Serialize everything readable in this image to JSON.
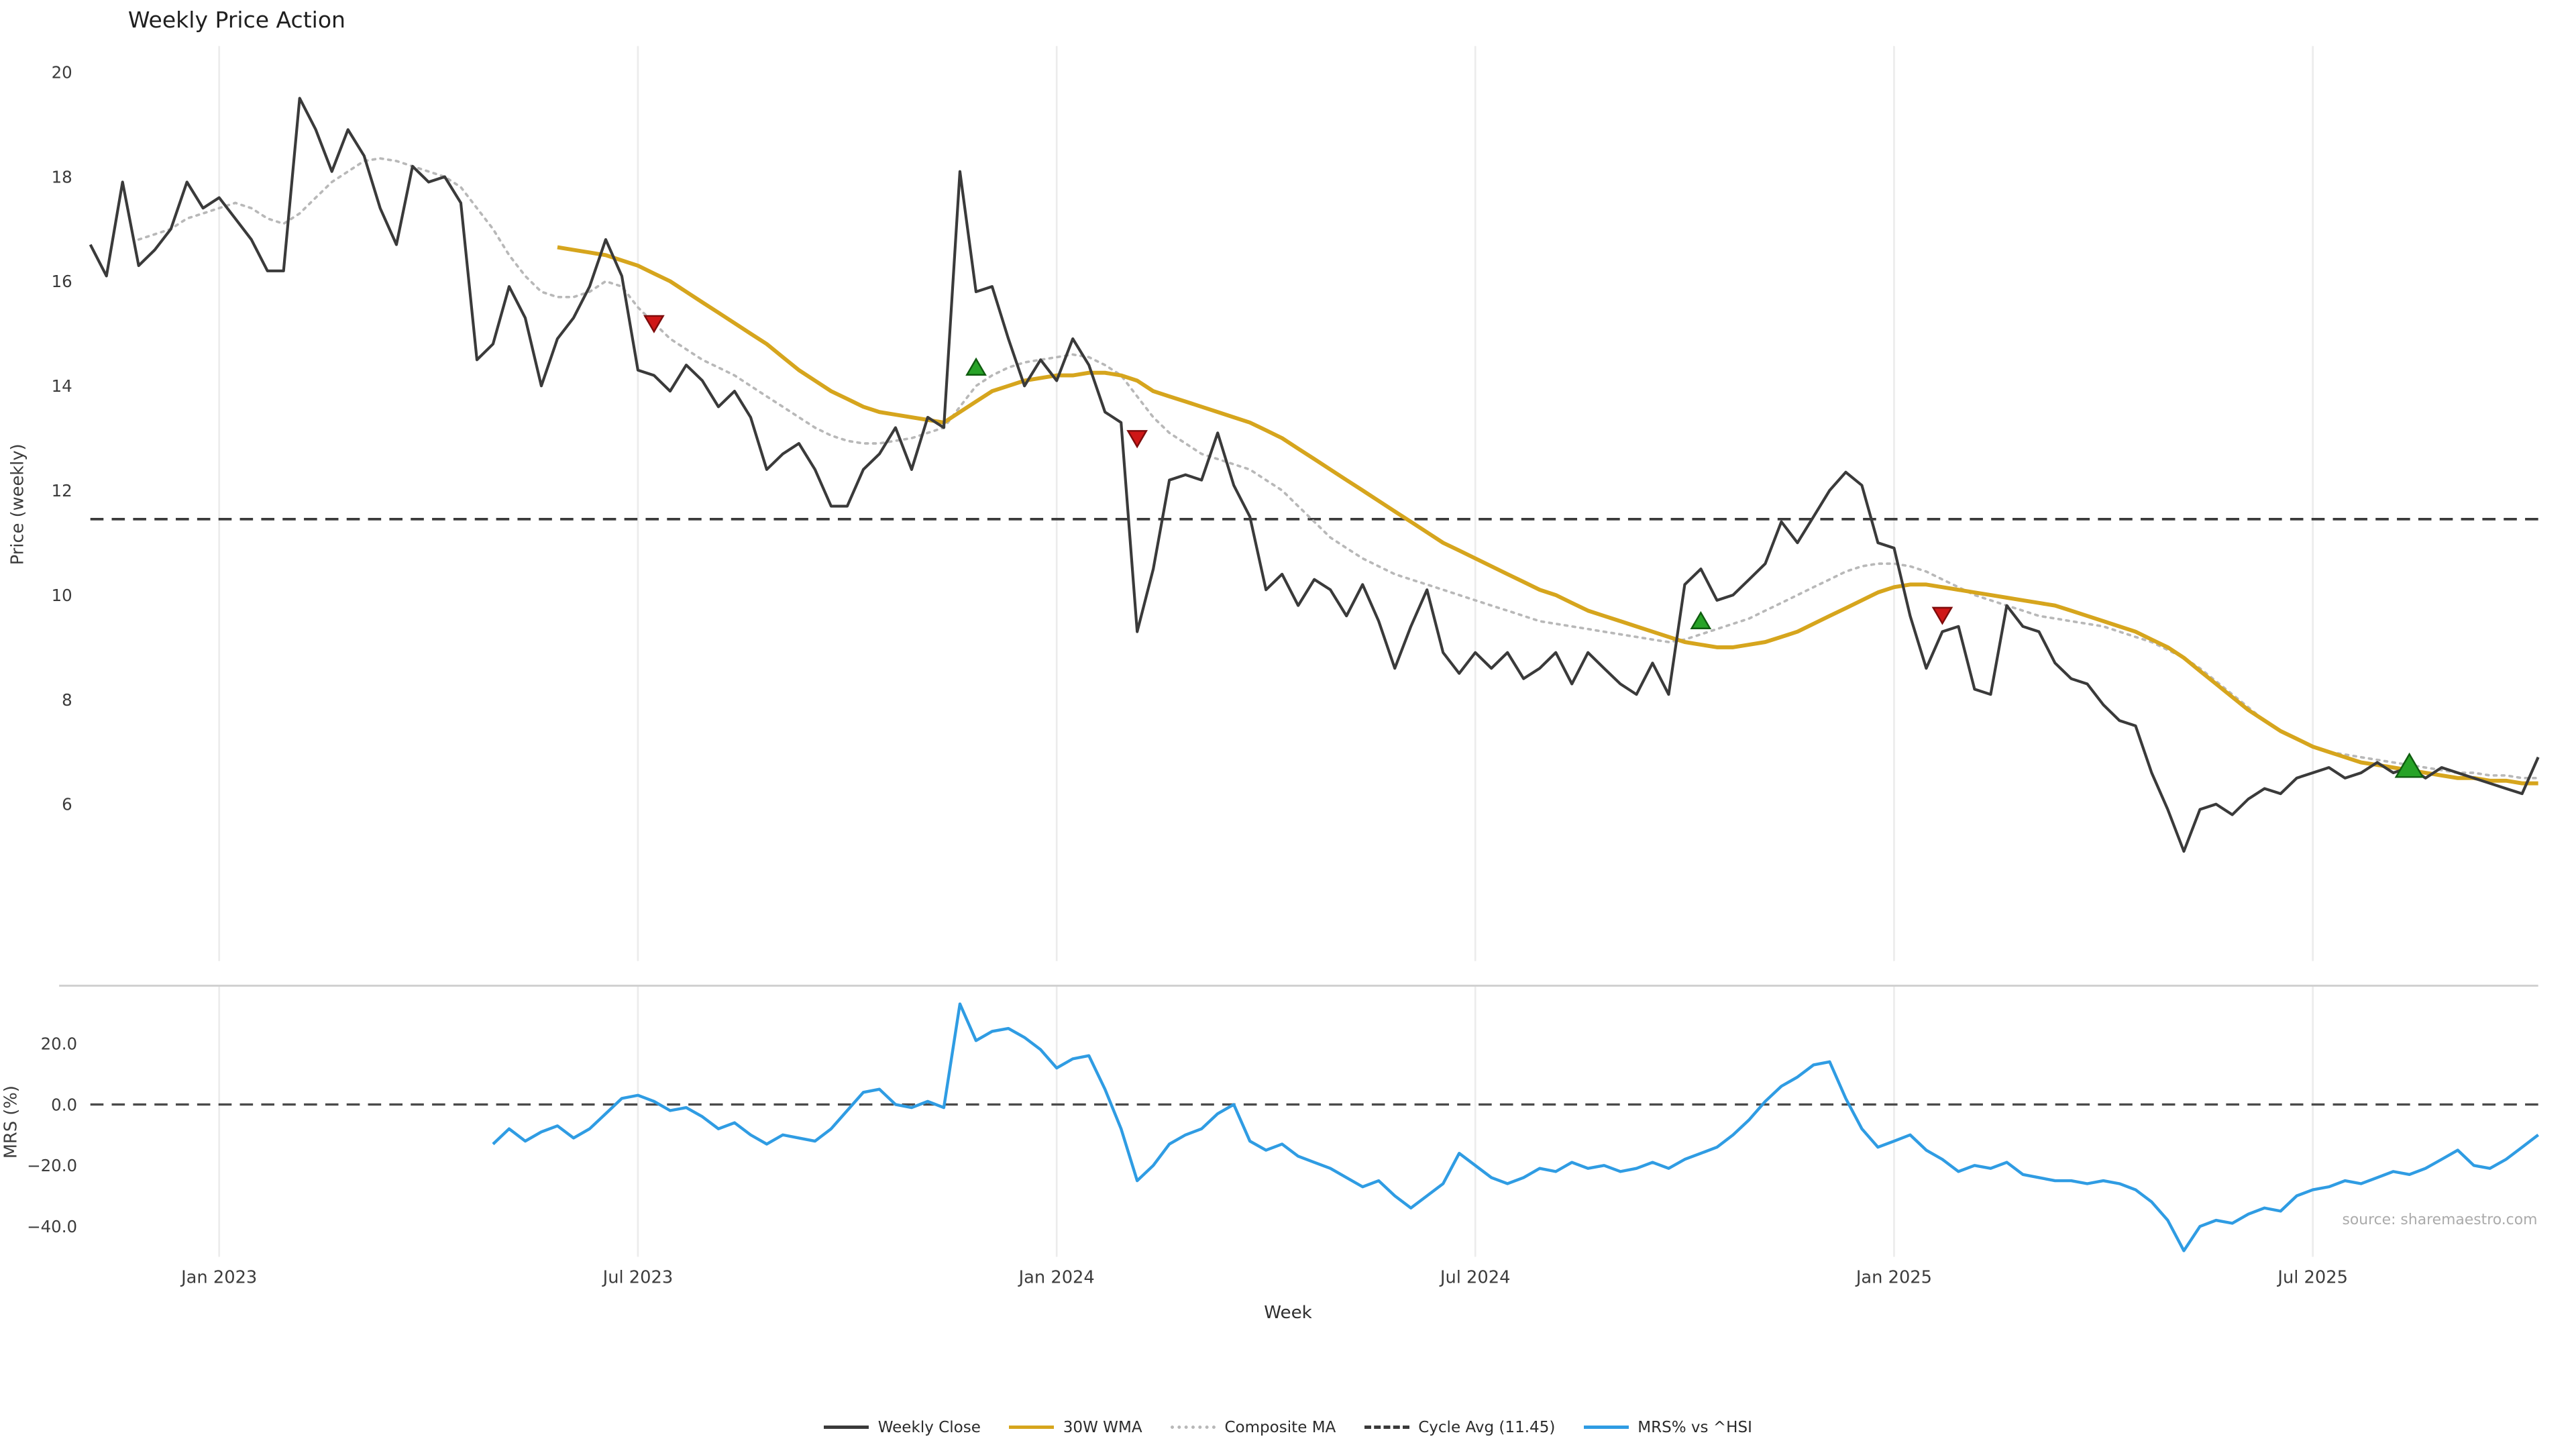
{
  "chart_data": {
    "type": "line",
    "title": "Weekly Price Action",
    "source": "source: sharemaestro.com",
    "colors": {
      "close": "#3a3a3a",
      "wma": "#d6a51d",
      "composite": "#b8b8b8",
      "cycle_avg": "#3a3a3a",
      "mrs": "#2f9ce3",
      "buy_fill": "#27a327",
      "buy_edge": "#0f5c0f",
      "sell_fill": "#cf1717",
      "sell_edge": "#7e0c0c",
      "grid": "#ececec",
      "spine": "#d0d0d0",
      "tick_text": "#3c3c3c"
    },
    "x_axis": {
      "label": "Week",
      "n_points": 153,
      "tick_indices": [
        8,
        34,
        60,
        86,
        112,
        138
      ],
      "tick_labels": [
        "Jan 2023",
        "Jul 2023",
        "Jan 2024",
        "Jul 2024",
        "Jan 2025",
        "Jul 2025"
      ]
    },
    "price_panel": {
      "ylabel": "Price (weekly)",
      "ylim": [
        3,
        20.5
      ],
      "yticks": [
        6,
        8,
        10,
        12,
        14,
        16,
        18,
        20
      ],
      "cycle_avg": 11.45,
      "close": {
        "start_index": 0,
        "values": [
          16.7,
          16.1,
          17.9,
          16.3,
          16.6,
          17.0,
          17.9,
          17.4,
          17.6,
          17.2,
          16.8,
          16.2,
          16.2,
          19.5,
          18.9,
          18.1,
          18.9,
          18.4,
          17.4,
          16.7,
          18.2,
          17.9,
          18.0,
          17.5,
          14.5,
          14.8,
          15.9,
          15.3,
          14.0,
          14.9,
          15.3,
          15.9,
          16.8,
          16.1,
          14.3,
          14.2,
          13.9,
          14.4,
          14.1,
          13.6,
          13.9,
          13.4,
          12.4,
          12.7,
          12.9,
          12.4,
          11.7,
          11.7,
          12.4,
          12.7,
          13.2,
          12.4,
          13.4,
          13.2,
          18.1,
          15.8,
          15.9,
          14.9,
          14.0,
          14.5,
          14.1,
          14.9,
          14.4,
          13.5,
          13.3,
          9.3,
          10.5,
          12.2,
          12.3,
          12.2,
          13.1,
          12.1,
          11.5,
          10.1,
          10.4,
          9.8,
          10.3,
          10.1,
          9.6,
          10.2,
          9.5,
          8.6,
          9.4,
          10.1,
          8.9,
          8.5,
          8.9,
          8.6,
          8.9,
          8.4,
          8.6,
          8.9,
          8.3,
          8.9,
          8.6,
          8.3,
          8.1,
          8.7,
          8.1,
          10.2,
          10.5,
          9.9,
          10.0,
          10.3,
          10.6,
          11.4,
          11.0,
          11.5,
          12.0,
          12.35,
          12.1,
          11.0,
          10.9,
          9.6,
          8.6,
          9.3,
          9.4,
          8.2,
          8.1,
          9.8,
          9.4,
          9.3,
          8.7,
          8.4,
          8.3,
          7.9,
          7.6,
          7.5,
          6.6,
          5.9,
          5.1,
          5.9,
          6.0,
          5.8,
          6.1,
          6.3,
          6.2,
          6.5,
          6.6,
          6.7,
          6.5,
          6.6,
          6.8,
          6.6,
          6.7,
          6.5,
          6.7,
          6.6,
          6.5,
          6.4,
          6.3,
          6.2,
          6.9
        ]
      },
      "wma30": {
        "start_index": 29,
        "values": [
          16.65,
          16.6,
          16.55,
          16.5,
          16.4,
          16.3,
          16.15,
          16.0,
          15.8,
          15.6,
          15.4,
          15.2,
          15.0,
          14.8,
          14.55,
          14.3,
          14.1,
          13.9,
          13.75,
          13.6,
          13.5,
          13.45,
          13.4,
          13.35,
          13.3,
          13.5,
          13.7,
          13.9,
          14.0,
          14.1,
          14.15,
          14.2,
          14.2,
          14.25,
          14.25,
          14.2,
          14.1,
          13.9,
          13.8,
          13.7,
          13.6,
          13.5,
          13.4,
          13.3,
          13.15,
          13.0,
          12.8,
          12.6,
          12.4,
          12.2,
          12.0,
          11.8,
          11.6,
          11.4,
          11.2,
          11.0,
          10.85,
          10.7,
          10.55,
          10.4,
          10.25,
          10.1,
          10.0,
          9.85,
          9.7,
          9.6,
          9.5,
          9.4,
          9.3,
          9.2,
          9.1,
          9.05,
          9.0,
          9.0,
          9.05,
          9.1,
          9.2,
          9.3,
          9.45,
          9.6,
          9.75,
          9.9,
          10.05,
          10.15,
          10.2,
          10.2,
          10.15,
          10.1,
          10.05,
          10.0,
          9.95,
          9.9,
          9.85,
          9.8,
          9.7,
          9.6,
          9.5,
          9.4,
          9.3,
          9.15,
          9.0,
          8.8,
          8.55,
          8.3,
          8.05,
          7.8,
          7.6,
          7.4,
          7.25,
          7.1,
          7.0,
          6.9,
          6.8,
          6.75,
          6.7,
          6.65,
          6.6,
          6.55,
          6.5,
          6.5,
          6.45,
          6.45,
          6.4,
          6.4
        ]
      },
      "composite": {
        "start_index": 3,
        "values": [
          16.8,
          16.9,
          17.0,
          17.2,
          17.3,
          17.4,
          17.5,
          17.4,
          17.2,
          17.1,
          17.3,
          17.6,
          17.9,
          18.1,
          18.3,
          18.35,
          18.3,
          18.2,
          18.1,
          18.0,
          17.8,
          17.4,
          17.0,
          16.5,
          16.1,
          15.8,
          15.7,
          15.7,
          15.8,
          16.0,
          15.9,
          15.5,
          15.2,
          14.9,
          14.7,
          14.5,
          14.35,
          14.2,
          14.0,
          13.8,
          13.6,
          13.4,
          13.2,
          13.05,
          12.95,
          12.9,
          12.9,
          12.95,
          13.0,
          13.1,
          13.2,
          13.6,
          14.0,
          14.2,
          14.35,
          14.45,
          14.5,
          14.55,
          14.6,
          14.55,
          14.4,
          14.2,
          13.8,
          13.4,
          13.1,
          12.9,
          12.7,
          12.6,
          12.5,
          12.4,
          12.2,
          12.0,
          11.7,
          11.4,
          11.1,
          10.9,
          10.7,
          10.55,
          10.4,
          10.3,
          10.2,
          10.1,
          10.0,
          9.9,
          9.8,
          9.7,
          9.6,
          9.5,
          9.45,
          9.4,
          9.35,
          9.3,
          9.25,
          9.2,
          9.15,
          9.1,
          9.15,
          9.25,
          9.35,
          9.45,
          9.55,
          9.7,
          9.85,
          10.0,
          10.15,
          10.3,
          10.45,
          10.55,
          10.6,
          10.6,
          10.55,
          10.45,
          10.3,
          10.15,
          10.0,
          9.9,
          9.8,
          9.7,
          9.6,
          9.55,
          9.5,
          9.45,
          9.4,
          9.3,
          9.2,
          9.1,
          8.95,
          8.8,
          8.6,
          8.35,
          8.1,
          7.85,
          7.6,
          7.4,
          7.25,
          7.1,
          7.0,
          6.95,
          6.9,
          6.85,
          6.8,
          6.75,
          6.7,
          6.65,
          6.6,
          6.6,
          6.55,
          6.55,
          6.5,
          6.5
        ]
      },
      "signals": [
        {
          "index": 35,
          "price": 15.2,
          "type": "sell",
          "size": "normal"
        },
        {
          "index": 55,
          "price": 14.35,
          "type": "buy",
          "size": "normal"
        },
        {
          "index": 65,
          "price": 13.0,
          "type": "sell",
          "size": "normal"
        },
        {
          "index": 100,
          "price": 9.5,
          "type": "buy",
          "size": "normal"
        },
        {
          "index": 115,
          "price": 9.62,
          "type": "sell",
          "size": "normal"
        },
        {
          "index": 144,
          "price": 6.72,
          "type": "buy",
          "size": "large"
        }
      ]
    },
    "mrs_panel": {
      "ylabel": "MRS (%)",
      "ylim": [
        -50,
        39
      ],
      "yticks": [
        {
          "value": 20,
          "label": "20.0"
        },
        {
          "value": 0,
          "label": "0.0"
        },
        {
          "value": -20,
          "label": "−20.0"
        },
        {
          "value": -40,
          "label": "−40.0"
        }
      ],
      "zero_line": 0,
      "mrs": {
        "start_index": 25,
        "values": [
          -13,
          -8,
          -12,
          -9,
          -7,
          -11,
          -8,
          -3,
          2,
          3,
          1,
          -2,
          -1,
          -4,
          -8,
          -6,
          -10,
          -13,
          -10,
          -11,
          -12,
          -8,
          -2,
          4,
          5,
          0,
          -1,
          1,
          -1,
          33,
          21,
          24,
          25,
          22,
          18,
          12,
          15,
          16,
          5,
          -8,
          -25,
          -20,
          -13,
          -10,
          -8,
          -3,
          0,
          -12,
          -15,
          -13,
          -17,
          -19,
          -21,
          -24,
          -27,
          -25,
          -30,
          -34,
          -30,
          -26,
          -16,
          -20,
          -24,
          -26,
          -24,
          -21,
          -22,
          -19,
          -21,
          -20,
          -22,
          -21,
          -19,
          -21,
          -18,
          -16,
          -14,
          -10,
          -5,
          1,
          6,
          9,
          13,
          14,
          2,
          -8,
          -14,
          -12,
          -10,
          -15,
          -18,
          -22,
          -20,
          -21,
          -19,
          -23,
          -24,
          -25,
          -25,
          -26,
          -25,
          -26,
          -28,
          -32,
          -38,
          -48,
          -40,
          -38,
          -39,
          -36,
          -34,
          -35,
          -30,
          -28,
          -27,
          -25,
          -26,
          -24,
          -22,
          -23,
          -21,
          -18,
          -15,
          -20,
          -21,
          -18,
          -14,
          -10
        ]
      }
    },
    "legend": [
      {
        "label": "Weekly Close",
        "color": "#3a3a3a",
        "style": "solid"
      },
      {
        "label": "30W WMA",
        "color": "#d6a51d",
        "style": "solid"
      },
      {
        "label": "Composite MA",
        "color": "#b8b8b8",
        "style": "dotted"
      },
      {
        "label": "Cycle Avg (11.45)",
        "color": "#3a3a3a",
        "style": "dashed"
      },
      {
        "label": "MRS% vs ^HSI",
        "color": "#2f9ce3",
        "style": "solid"
      }
    ]
  }
}
